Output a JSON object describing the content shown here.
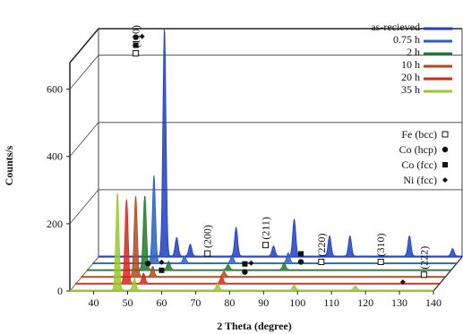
{
  "chart_data": {
    "type": "line",
    "layout": "3d-waterfall",
    "xlabel": "2 Theta (degree)",
    "ylabel": "Counts/s",
    "x_ticks": [
      40,
      50,
      60,
      70,
      80,
      90,
      100,
      110,
      120,
      130,
      140
    ],
    "y_ticks": [
      0,
      200,
      400,
      600
    ],
    "xlim": [
      33,
      140
    ],
    "ylim": [
      0,
      780
    ],
    "grid": true,
    "legend_position": "top-right",
    "series": [
      {
        "name": "as-recieved",
        "color": "#1f3fbf",
        "peaks": [
          {
            "x": 52.4,
            "y": 680
          },
          {
            "x": 56.0,
            "y": 55
          },
          {
            "x": 60.0,
            "y": 35
          },
          {
            "x": 73.5,
            "y": 85
          },
          {
            "x": 84.5,
            "y": 30
          },
          {
            "x": 90.6,
            "y": 110
          },
          {
            "x": 101.0,
            "y": 60
          },
          {
            "x": 107.0,
            "y": 60
          },
          {
            "x": 124.5,
            "y": 60
          },
          {
            "x": 137.2,
            "y": 22
          }
        ]
      },
      {
        "name": "0.75 h",
        "color": "#2a5fc0",
        "peaks": [
          {
            "x": 51.0,
            "y": 260
          },
          {
            "x": 60.0,
            "y": 20
          },
          {
            "x": 74.0,
            "y": 20
          },
          {
            "x": 90.5,
            "y": 30
          }
        ]
      },
      {
        "name": "2 h",
        "color": "#1e7a2c",
        "peaks": [
          {
            "x": 50.0,
            "y": 220
          },
          {
            "x": 57.0,
            "y": 25
          },
          {
            "x": 74.5,
            "y": 15
          },
          {
            "x": 91.0,
            "y": 20
          }
        ]
      },
      {
        "name": "10 h",
        "color": "#b04a1c",
        "peaks": [
          {
            "x": 49.0,
            "y": 240
          },
          {
            "x": 54.0,
            "y": 30
          },
          {
            "x": 75.0,
            "y": 15
          }
        ]
      },
      {
        "name": "20 h",
        "color": "#d9261c",
        "peaks": [
          {
            "x": 48.0,
            "y": 250
          },
          {
            "x": 53.0,
            "y": 30
          },
          {
            "x": 76.0,
            "y": 20
          }
        ]
      },
      {
        "name": "35 h",
        "color": "#9cc92a",
        "peaks": [
          {
            "x": 47.0,
            "y": 290
          },
          {
            "x": 52.0,
            "y": 35
          },
          {
            "x": 76.5,
            "y": 20
          },
          {
            "x": 99.0,
            "y": 15
          },
          {
            "x": 117.0,
            "y": 12
          }
        ]
      }
    ],
    "peak_labels": [
      {
        "text": "(110)",
        "x": 52.4,
        "y": 680
      },
      {
        "text": "(200)",
        "x": 73.5,
        "y": 85
      },
      {
        "text": "(211)",
        "x": 90.6,
        "y": 110
      },
      {
        "text": "(220)",
        "x": 107.0,
        "y": 60
      },
      {
        "text": "(310)",
        "x": 124.5,
        "y": 60
      },
      {
        "text": "(222)",
        "x": 137.2,
        "y": 22
      }
    ],
    "phase_legend": [
      {
        "label": "Fe (bcc)",
        "symbol": "open-square"
      },
      {
        "label": "Co (hcp)",
        "symbol": "filled-circle"
      },
      {
        "label": "Co (fcc)",
        "symbol": "filled-square"
      },
      {
        "label": "Ni (fcc)",
        "symbol": "filled-diamond"
      }
    ],
    "phase_markers": [
      {
        "x": 52.4,
        "y": 680,
        "symbols": [
          "open-square",
          "filled-square",
          "filled-circle",
          "filled-diamond"
        ]
      },
      {
        "x": 56.0,
        "y": 55,
        "symbols": [
          "filled-circle"
        ]
      },
      {
        "x": 60.0,
        "y": 35,
        "symbols": [
          "filled-square",
          "filled-diamond"
        ]
      },
      {
        "x": 73.5,
        "y": 85,
        "symbols": [
          "open-square"
        ]
      },
      {
        "x": 84.5,
        "y": 30,
        "symbols": [
          "filled-circle",
          "filled-square",
          "filled-diamond"
        ]
      },
      {
        "x": 90.6,
        "y": 110,
        "symbols": [
          "open-square"
        ]
      },
      {
        "x": 101.0,
        "y": 60,
        "symbols": [
          "filled-circle",
          "filled-square"
        ]
      },
      {
        "x": 107.0,
        "y": 60,
        "symbols": [
          "open-square"
        ]
      },
      {
        "x": 124.5,
        "y": 60,
        "symbols": [
          "open-square"
        ]
      },
      {
        "x": 131.0,
        "y": 0,
        "symbols": [
          "filled-diamond"
        ]
      },
      {
        "x": 137.2,
        "y": 22,
        "symbols": [
          "open-square"
        ]
      }
    ]
  }
}
